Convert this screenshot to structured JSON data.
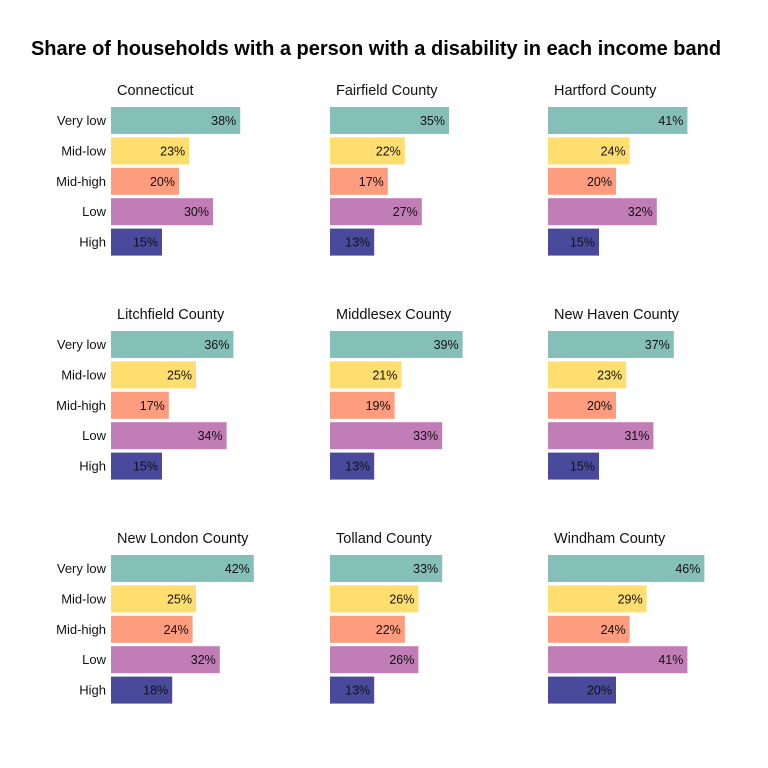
{
  "chart_data": {
    "type": "bar",
    "orientation": "horizontal",
    "title": "Share of households with a person with a disability in each income band",
    "categories": [
      "Very low",
      "Mid-low",
      "Mid-high",
      "Low",
      "High"
    ],
    "colors": {
      "Very low": "#84bfb8",
      "Mid-low": "#fede6e",
      "Mid-high": "#fd9c7f",
      "Low": "#c17db6",
      "High": "#4a4a9c"
    },
    "xlim": [
      0,
      0.47
    ],
    "grid": false,
    "legend": "none",
    "facets": [
      {
        "name": "Connecticut",
        "values": [
          0.38,
          0.23,
          0.2,
          0.3,
          0.15
        ],
        "labels": [
          "38%",
          "23%",
          "20%",
          "30%",
          "15%"
        ]
      },
      {
        "name": "Fairfield County",
        "values": [
          0.35,
          0.22,
          0.17,
          0.27,
          0.13
        ],
        "labels": [
          "35%",
          "22%",
          "17%",
          "27%",
          "13%"
        ]
      },
      {
        "name": "Hartford County",
        "values": [
          0.41,
          0.24,
          0.2,
          0.32,
          0.15
        ],
        "labels": [
          "41%",
          "24%",
          "20%",
          "32%",
          "15%"
        ]
      },
      {
        "name": "Litchfield County",
        "values": [
          0.36,
          0.25,
          0.17,
          0.34,
          0.15
        ],
        "labels": [
          "36%",
          "25%",
          "17%",
          "34%",
          "15%"
        ]
      },
      {
        "name": "Middlesex County",
        "values": [
          0.39,
          0.21,
          0.19,
          0.33,
          0.13
        ],
        "labels": [
          "39%",
          "21%",
          "19%",
          "33%",
          "13%"
        ]
      },
      {
        "name": "New Haven County",
        "values": [
          0.37,
          0.23,
          0.2,
          0.31,
          0.15
        ],
        "labels": [
          "37%",
          "23%",
          "20%",
          "31%",
          "15%"
        ]
      },
      {
        "name": "New London County",
        "values": [
          0.42,
          0.25,
          0.24,
          0.32,
          0.18
        ],
        "labels": [
          "42%",
          "25%",
          "24%",
          "32%",
          "18%"
        ]
      },
      {
        "name": "Tolland County",
        "values": [
          0.33,
          0.26,
          0.22,
          0.26,
          0.13
        ],
        "labels": [
          "33%",
          "26%",
          "22%",
          "26%",
          "13%"
        ]
      },
      {
        "name": "Windham County",
        "values": [
          0.46,
          0.29,
          0.24,
          0.41,
          0.2
        ],
        "labels": [
          "46%",
          "29%",
          "24%",
          "41%",
          "20%"
        ]
      }
    ]
  }
}
